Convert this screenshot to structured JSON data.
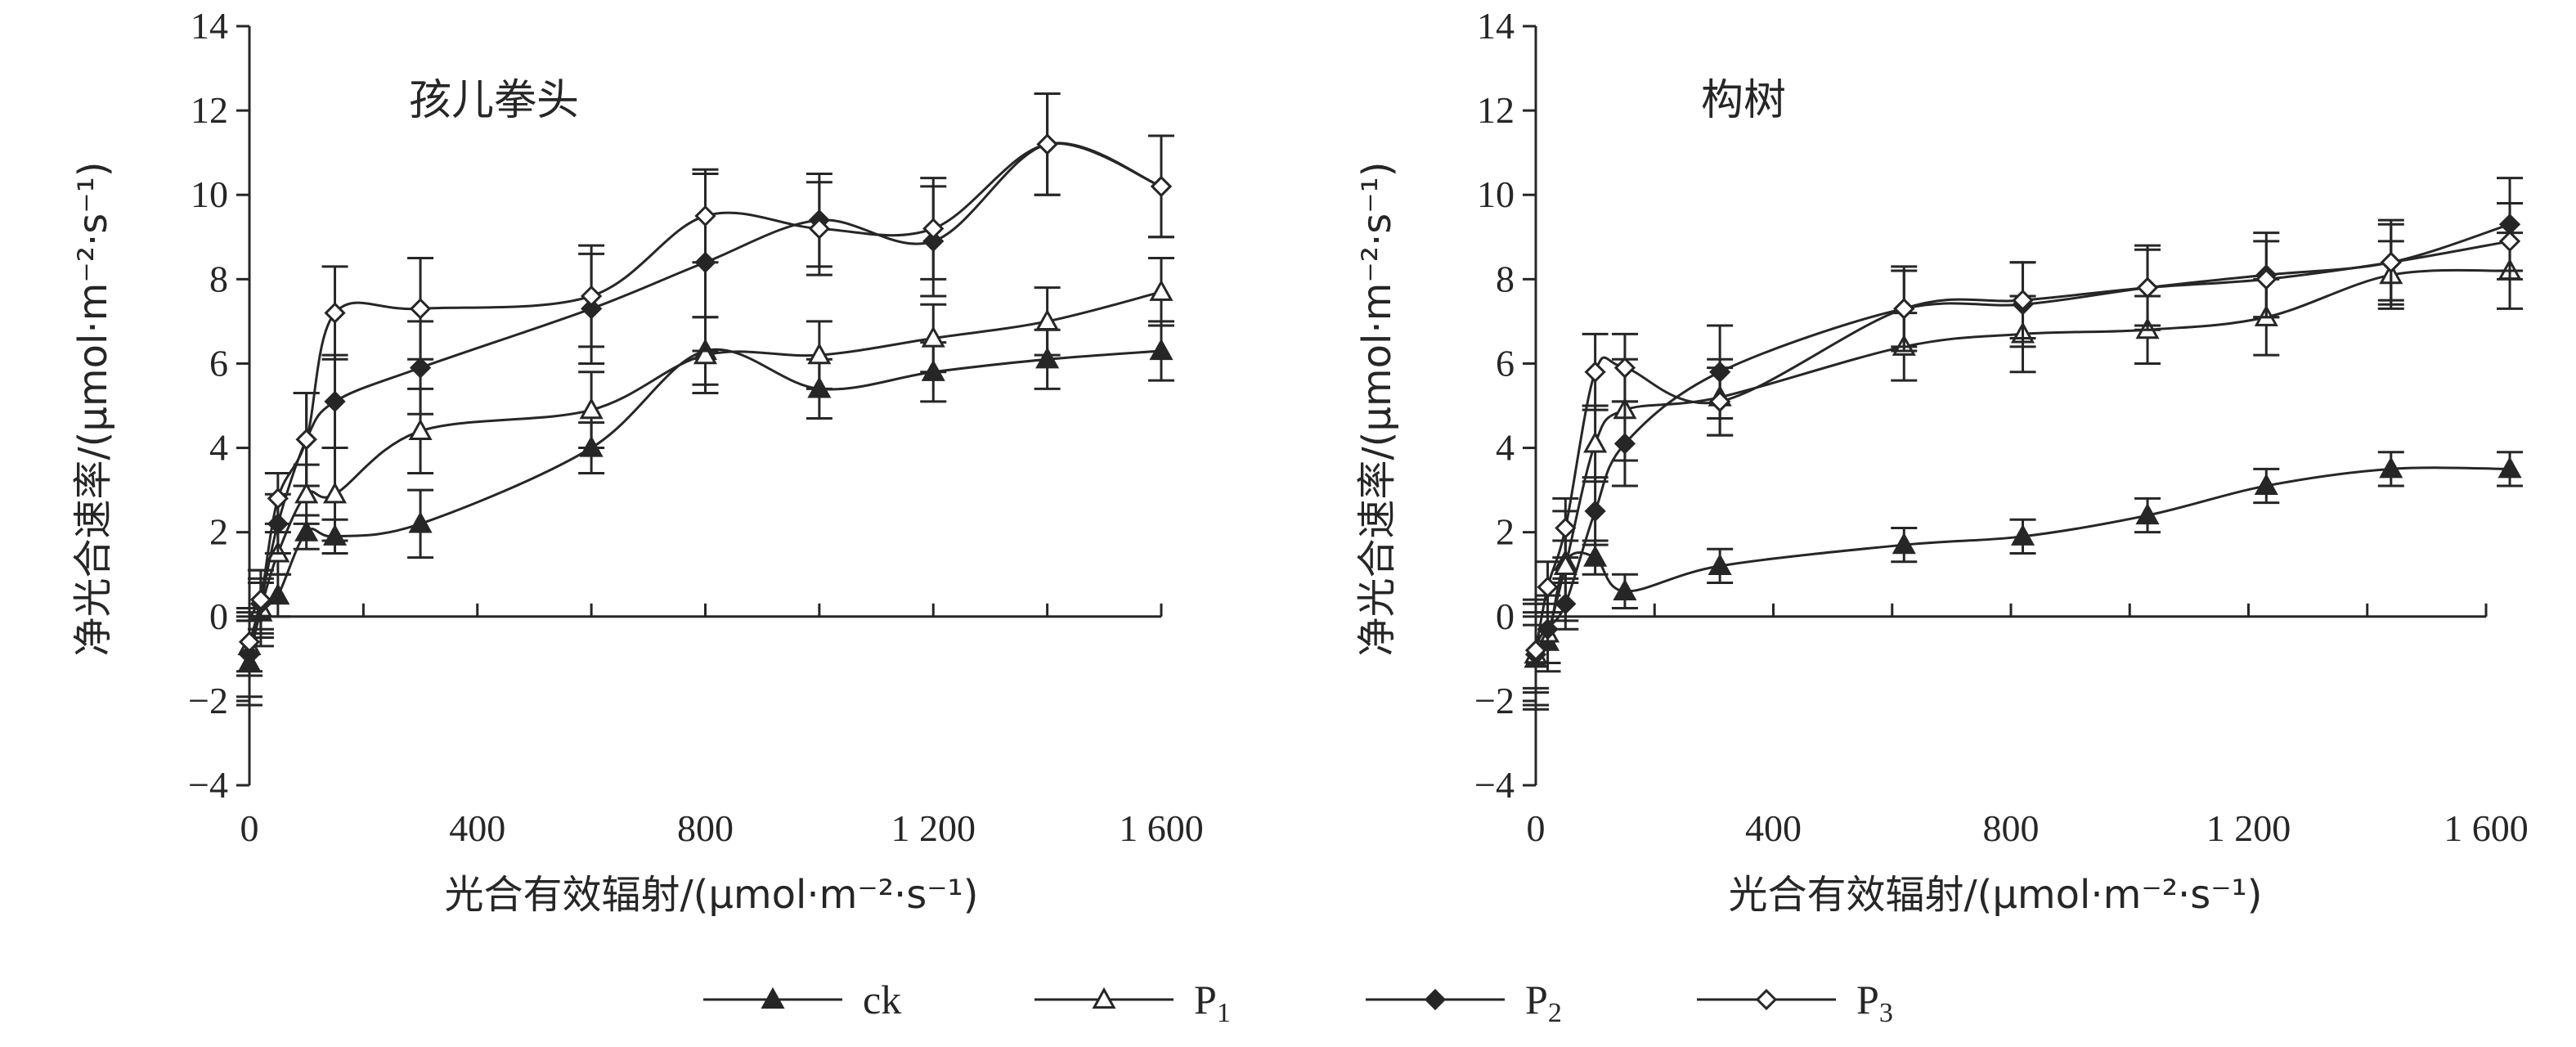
{
  "chart_data": [
    {
      "type": "line",
      "title": "孩儿拳头",
      "ylabel": "净光合速率/(μmol·m⁻²·s⁻¹)",
      "xlabel": "光合有效辐射/(μmol·m⁻²·s⁻¹)",
      "xlim": [
        0,
        1600
      ],
      "ylim": [
        -4,
        14
      ],
      "x_ticks": [
        0,
        400,
        800,
        1200,
        1600
      ],
      "x_tick_labels": [
        "0",
        "400",
        "800",
        "1 200",
        "1 600"
      ],
      "y_ticks": [
        -4,
        -2,
        0,
        2,
        4,
        6,
        8,
        10,
        12,
        14
      ],
      "y_tick_labels": [
        "−4",
        "−2",
        "0",
        "2",
        "4",
        "6",
        "8",
        "10",
        "12",
        "14"
      ],
      "grid": false,
      "legend": "bottom",
      "series": [
        {
          "name": "ck",
          "marker": "triangle-filled",
          "x": [
            0,
            20,
            50,
            100,
            150,
            300,
            600,
            800,
            1000,
            1200,
            1400,
            1600
          ],
          "y": [
            -1.1,
            0.1,
            0.5,
            2.0,
            1.9,
            2.2,
            4.0,
            6.3,
            5.4,
            5.8,
            6.1,
            6.3
          ],
          "error": [
            1.0,
            0.8,
            0.5,
            0.4,
            0.4,
            0.8,
            0.6,
            0.8,
            0.7,
            0.7,
            0.7,
            0.7
          ]
        },
        {
          "name": "P1",
          "marker": "triangle-open",
          "x": [
            0,
            20,
            50,
            100,
            150,
            300,
            600,
            800,
            1000,
            1200,
            1400,
            1600
          ],
          "y": [
            -0.7,
            0.2,
            1.5,
            2.9,
            2.9,
            4.4,
            4.9,
            6.2,
            6.2,
            6.6,
            7.0,
            7.7
          ],
          "error": [
            0.6,
            0.6,
            0.5,
            0.7,
            1.1,
            1.0,
            0.9,
            0.9,
            0.8,
            0.8,
            0.8,
            0.8
          ]
        },
        {
          "name": "P2",
          "marker": "diamond-filled",
          "x": [
            0,
            20,
            50,
            100,
            150,
            300,
            600,
            800,
            1000,
            1200,
            1400,
            1600
          ],
          "y": [
            -0.9,
            0.3,
            2.2,
            4.2,
            5.1,
            5.9,
            7.3,
            8.4,
            9.4,
            8.9,
            11.2,
            10.2
          ],
          "error": [
            1.0,
            0.8,
            0.7,
            1.1,
            1.1,
            1.1,
            1.3,
            2.1,
            1.1,
            1.3,
            1.2,
            1.2
          ]
        },
        {
          "name": "P3",
          "marker": "diamond-open",
          "x": [
            0,
            20,
            50,
            100,
            150,
            300,
            600,
            800,
            1000,
            1200,
            1400,
            1600
          ],
          "y": [
            -0.6,
            0.4,
            2.8,
            4.2,
            7.2,
            7.3,
            7.6,
            9.5,
            9.2,
            9.2,
            11.2,
            10.2
          ],
          "error": [
            0.8,
            0.7,
            0.6,
            1.1,
            1.1,
            1.2,
            1.2,
            1.1,
            1.1,
            1.2,
            1.2,
            1.2
          ]
        }
      ]
    },
    {
      "type": "line",
      "title": "构树",
      "ylabel": "净光合速率/(μmol·m⁻²·s⁻¹)",
      "xlabel": "光合有效辐射/(μmol·m⁻²·s⁻¹)",
      "xlim": [
        0,
        1600
      ],
      "ylim": [
        -4,
        14
      ],
      "x_ticks": [
        0,
        400,
        800,
        1200,
        1600
      ],
      "x_tick_labels": [
        "0",
        "400",
        "800",
        "1 200",
        "1 600"
      ],
      "y_ticks": [
        -4,
        -2,
        0,
        2,
        4,
        6,
        8,
        10,
        12,
        14
      ],
      "y_tick_labels": [
        "−4",
        "−2",
        "0",
        "2",
        "4",
        "6",
        "8",
        "10",
        "12",
        "14"
      ],
      "grid": false,
      "legend": "bottom",
      "series": [
        {
          "name": "ck",
          "marker": "triangle-filled",
          "x": [
            0,
            20,
            50,
            100,
            150,
            310,
            620,
            820,
            1030,
            1230,
            1440,
            1640
          ],
          "y": [
            -1.0,
            -0.6,
            1.3,
            1.4,
            0.6,
            1.2,
            1.7,
            1.9,
            2.4,
            3.1,
            3.5,
            3.5
          ],
          "error": [
            0.8,
            0.7,
            0.5,
            0.4,
            0.4,
            0.4,
            0.4,
            0.4,
            0.4,
            0.4,
            0.4,
            0.4
          ]
        },
        {
          "name": "P1",
          "marker": "triangle-open",
          "x": [
            0,
            20,
            50,
            100,
            150,
            310,
            620,
            820,
            1030,
            1230,
            1440,
            1640
          ],
          "y": [
            -0.9,
            -0.4,
            1.2,
            4.1,
            4.9,
            5.2,
            6.4,
            6.7,
            6.8,
            7.1,
            8.1,
            8.2
          ],
          "error": [
            1.2,
            0.7,
            1.3,
            0.9,
            1.2,
            0.9,
            0.8,
            0.9,
            0.8,
            0.9,
            0.8,
            0.9
          ]
        },
        {
          "name": "P2",
          "marker": "diamond-filled",
          "x": [
            0,
            20,
            50,
            100,
            150,
            310,
            620,
            820,
            1030,
            1230,
            1440,
            1640
          ],
          "y": [
            -0.9,
            -0.3,
            0.3,
            2.5,
            4.1,
            5.8,
            7.3,
            7.4,
            7.8,
            8.1,
            8.4,
            9.3
          ],
          "error": [
            1.3,
            0.8,
            0.6,
            0.8,
            1.0,
            1.1,
            1.0,
            1.0,
            1.0,
            1.0,
            1.0,
            1.1
          ]
        },
        {
          "name": "P3",
          "marker": "diamond-open",
          "x": [
            0,
            20,
            50,
            100,
            150,
            310,
            620,
            820,
            1030,
            1230,
            1440,
            1640
          ],
          "y": [
            -0.8,
            0.7,
            2.1,
            5.8,
            5.9,
            5.1,
            7.3,
            7.5,
            7.8,
            8.0,
            8.4,
            8.9
          ],
          "error": [
            0.9,
            0.6,
            0.7,
            0.9,
            0.8,
            0.8,
            0.9,
            0.9,
            0.9,
            0.9,
            0.9,
            0.9
          ]
        }
      ]
    }
  ],
  "legend": {
    "items": [
      {
        "key": "ck",
        "label": "ck",
        "sub": "",
        "marker": "triangle-filled"
      },
      {
        "key": "P1",
        "label": "P",
        "sub": "1",
        "marker": "triangle-open"
      },
      {
        "key": "P2",
        "label": "P",
        "sub": "2",
        "marker": "diamond-filled"
      },
      {
        "key": "P3",
        "label": "P",
        "sub": "3",
        "marker": "diamond-open"
      }
    ]
  },
  "colors": {
    "ink": "#262626",
    "background": "#ffffff"
  }
}
